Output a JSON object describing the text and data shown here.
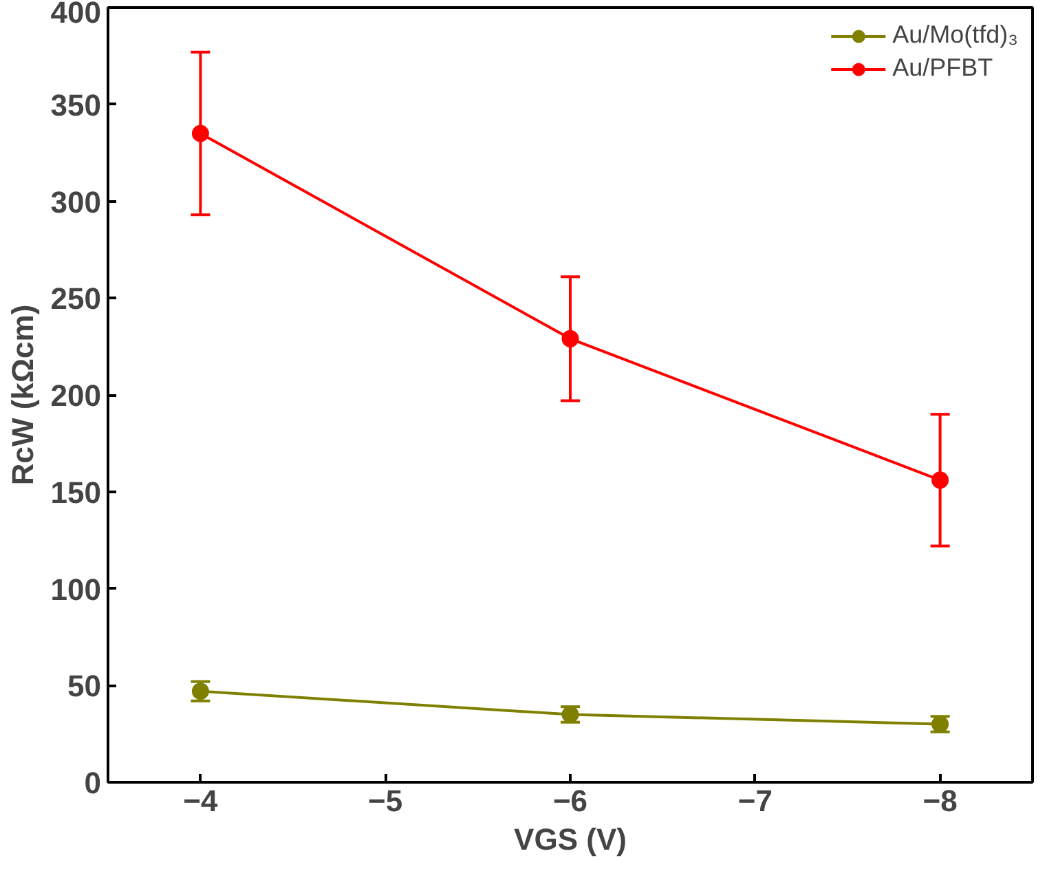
{
  "chart_data": {
    "type": "line",
    "xlabel": "VGS (V)",
    "ylabel": "RcW (kΩcm)",
    "x": [
      -4,
      -6,
      -8
    ],
    "xlim": [
      -3.5,
      -8.5
    ],
    "xticks": [
      -4,
      -5,
      -6,
      -7,
      -8
    ],
    "ylim": [
      0,
      400
    ],
    "yticks": [
      0,
      50,
      100,
      150,
      200,
      250,
      300,
      350,
      400
    ],
    "series": [
      {
        "name": "Au/Mo(tfd)₃",
        "color": "#808000",
        "values": [
          47,
          35,
          30
        ],
        "errors": [
          5,
          4,
          4
        ]
      },
      {
        "name": "Au/PFBT",
        "color": "#ff0000",
        "values": [
          335,
          229,
          156
        ],
        "errors": [
          42,
          32,
          34
        ]
      }
    ],
    "marker": "circle",
    "line_style": "solid",
    "grid": false,
    "legend": "top right"
  }
}
